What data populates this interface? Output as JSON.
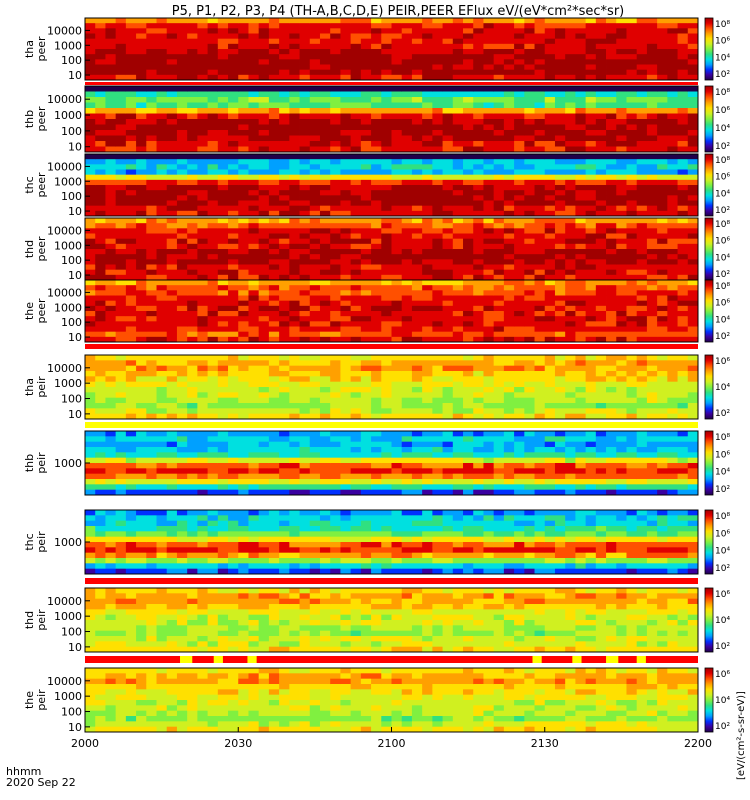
{
  "title": "P5, P1, P2, P3, P4 (TH-A,B,C,D,E) PEIR,PEER EFlux eV/(eV*cm²*sec*sr)",
  "colors": {
    "colormap": [
      "#ffffff",
      "#20004a",
      "#3a00a0",
      "#0030ff",
      "#00a0ff",
      "#00e0e0",
      "#30e080",
      "#80f040",
      "#d0f020",
      "#ffe000",
      "#ffa000",
      "#ff5000",
      "#e00000",
      "#a00000"
    ],
    "flag_red": "#ff0000",
    "flag_yellow": "#ffff00"
  },
  "chart_data": {
    "type": "heatmap",
    "title": "P5, P1, P2, P3, P4 (TH-A,B,C,D,E) PEIR,PEER EFlux eV/(eV*cm²*sec*sr)",
    "x_axis": {
      "tick_labels": [
        "2000",
        "2030",
        "2100",
        "2130",
        "2200"
      ],
      "range": [
        "2000",
        "2200"
      ],
      "label_line1": "hhmm",
      "label_line2": "2020 Sep 22"
    },
    "colorbar": {
      "label": "[eV/(cm²-s-sr-eV)]",
      "scale": "log",
      "tick_labels": [
        "10²",
        "10⁴",
        "10⁶",
        "10⁸"
      ]
    },
    "panels": [
      {
        "probe": "tha",
        "species": "peer",
        "ylabel_line1": "tha",
        "ylabel_line2": "peer",
        "y_scale": "log",
        "y_tick_labels": [
          "10",
          "100",
          "1000",
          "10000"
        ],
        "cbar_ticks": [
          "10²",
          "10⁴",
          "10⁶",
          "10⁸"
        ],
        "flag_bar": "red"
      },
      {
        "probe": "thb",
        "species": "peer",
        "ylabel_line1": "thb",
        "ylabel_line2": "peer",
        "y_scale": "log",
        "y_tick_labels": [
          "10",
          "100",
          "1000",
          "10000"
        ],
        "cbar_ticks": [
          "10²",
          "10⁴",
          "10⁶",
          "10⁸"
        ],
        "flag_bar": "none"
      },
      {
        "probe": "thc",
        "species": "peer",
        "ylabel_line1": "thc",
        "ylabel_line2": "peer",
        "y_scale": "log",
        "y_tick_labels": [
          "10",
          "100",
          "1000",
          "10000"
        ],
        "cbar_ticks": [
          "10²",
          "10⁴",
          "10⁶",
          "10⁸"
        ],
        "flag_bar": "none"
      },
      {
        "probe": "thd",
        "species": "peer",
        "ylabel_line1": "thd",
        "ylabel_line2": "peer",
        "y_scale": "log",
        "y_tick_labels": [
          "10",
          "100",
          "1000",
          "10000"
        ],
        "cbar_ticks": [
          "10²",
          "10⁴",
          "10⁶",
          "10⁸"
        ],
        "flag_bar": "none"
      },
      {
        "probe": "the",
        "species": "peer",
        "ylabel_line1": "the",
        "ylabel_line2": "peer",
        "y_scale": "log",
        "y_tick_labels": [
          "10",
          "100",
          "1000",
          "10000"
        ],
        "cbar_ticks": [
          "10²",
          "10⁴",
          "10⁶",
          "10⁸"
        ],
        "flag_bar": "red"
      },
      {
        "probe": "tha",
        "species": "peir",
        "ylabel_line1": "tha",
        "ylabel_line2": "peir",
        "y_scale": "log",
        "y_tick_labels": [
          "10",
          "100",
          "1000",
          "10000"
        ],
        "cbar_ticks": [
          "10²",
          "10⁴",
          "10⁶"
        ],
        "flag_bar": "yellow"
      },
      {
        "probe": "thb",
        "species": "peir",
        "ylabel_line1": "thb",
        "ylabel_line2": "peir",
        "y_scale": "log",
        "y_tick_labels": [
          "1000"
        ],
        "cbar_ticks": [
          "10²",
          "10⁴",
          "10⁶",
          "10⁸"
        ],
        "flag_bar": "none"
      },
      {
        "probe": "thc",
        "species": "peir",
        "ylabel_line1": "thc",
        "ylabel_line2": "peir",
        "y_scale": "log",
        "y_tick_labels": [
          "1000"
        ],
        "cbar_ticks": [
          "10²",
          "10⁴",
          "10⁶",
          "10⁸"
        ],
        "flag_bar": "red"
      },
      {
        "probe": "thd",
        "species": "peir",
        "ylabel_line1": "thd",
        "ylabel_line2": "peir",
        "y_scale": "log",
        "y_tick_labels": [
          "10",
          "100",
          "1000",
          "10000"
        ],
        "cbar_ticks": [
          "10²",
          "10⁴",
          "10⁶"
        ],
        "flag_bar": "red_yellow"
      },
      {
        "probe": "the",
        "species": "peir",
        "ylabel_line1": "the",
        "ylabel_line2": "peir",
        "y_scale": "log",
        "y_tick_labels": [
          "10",
          "100",
          "1000",
          "10000"
        ],
        "cbar_ticks": [
          "10²",
          "10⁴",
          "10⁶"
        ],
        "flag_bar": "none"
      }
    ]
  }
}
